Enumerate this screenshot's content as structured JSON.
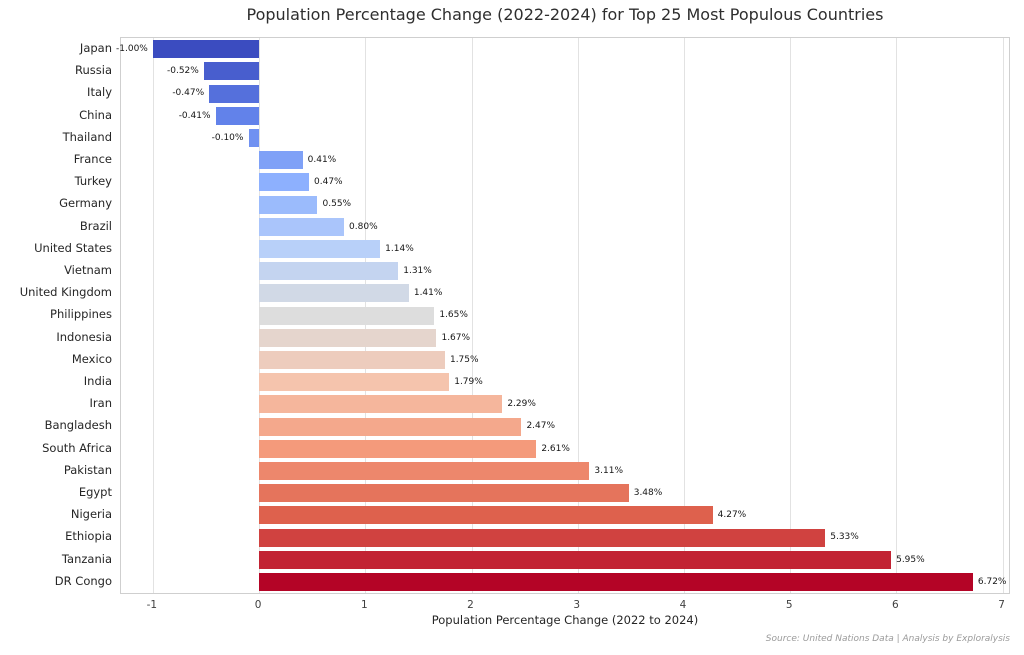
{
  "figure": {
    "source_note": "Source: United Nations Data | Analysis by Exploralysis"
  },
  "chart_data": {
    "type": "bar",
    "orientation": "horizontal",
    "title": "Population Percentage Change (2022-2024) for Top 25 Most Populous Countries",
    "xlabel": "Population Percentage Change (2022 to 2024)",
    "ylabel": "",
    "categories": [
      "Japan",
      "Russia",
      "Italy",
      "China",
      "Thailand",
      "France",
      "Turkey",
      "Germany",
      "Brazil",
      "United States",
      "Vietnam",
      "United Kingdom",
      "Philippines",
      "Indonesia",
      "Mexico",
      "India",
      "Iran",
      "Bangladesh",
      "South Africa",
      "Pakistan",
      "Egypt",
      "Nigeria",
      "Ethiopia",
      "Tanzania",
      "DR Congo"
    ],
    "values": [
      -1.0,
      -0.52,
      -0.47,
      -0.41,
      -0.1,
      0.41,
      0.47,
      0.55,
      0.8,
      1.14,
      1.31,
      1.41,
      1.65,
      1.67,
      1.75,
      1.79,
      2.29,
      2.47,
      2.61,
      3.11,
      3.48,
      4.27,
      5.33,
      5.95,
      6.72
    ],
    "value_labels": [
      "-1.00%",
      "-0.52%",
      "-0.47%",
      "-0.41%",
      "-0.10%",
      "0.41%",
      "0.47%",
      "0.55%",
      "0.80%",
      "1.14%",
      "1.31%",
      "1.41%",
      "1.65%",
      "1.67%",
      "1.75%",
      "1.79%",
      "2.29%",
      "2.47%",
      "2.61%",
      "3.11%",
      "3.48%",
      "4.27%",
      "5.33%",
      "5.95%",
      "6.72%"
    ],
    "bar_colors": [
      "#3b4cc0",
      "#485ece",
      "#5570dc",
      "#6282ea",
      "#7091f1",
      "#7fa1f7",
      "#8db0fe",
      "#9bbbfc",
      "#aac5fb",
      "#b8d0f9",
      "#c4d4f0",
      "#d1d9e6",
      "#dddddd",
      "#e5d5cd",
      "#edccbd",
      "#f5c4ad",
      "#f5b69c",
      "#f4a88c",
      "#f49a7b",
      "#ed876c",
      "#e5745c",
      "#de614d",
      "#d04240",
      "#c22333",
      "#b40426"
    ],
    "xlim": [
      -1.3,
      7.06
    ],
    "xticks": [
      -1,
      0,
      1,
      2,
      3,
      4,
      5,
      6,
      7
    ],
    "grid": true,
    "legend": "none",
    "colormap": "coolwarm"
  },
  "colors": {
    "background": "#ffffff",
    "grid": "#e2e2e2",
    "plot_border": "#cfcfcf",
    "title_text": "#2e2e2e",
    "axis_text": "#404040",
    "value_text": "#161616",
    "source_text": "#9a9a9a"
  }
}
